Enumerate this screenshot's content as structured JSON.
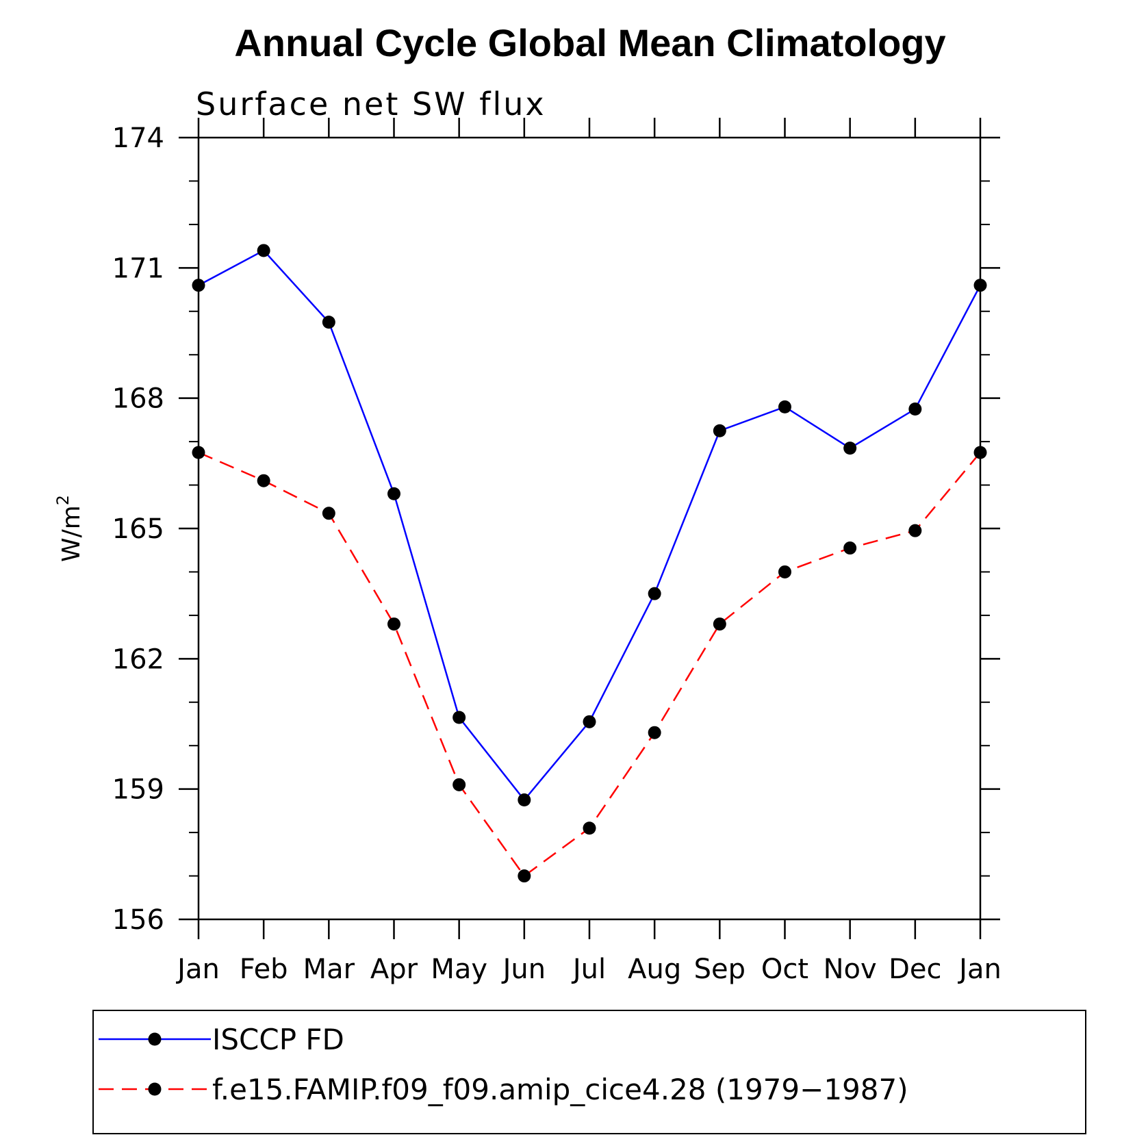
{
  "chart_data": {
    "type": "line",
    "title": "Annual Cycle Global Mean Climatology",
    "subtitle": "Surface net SW flux",
    "ylabel": "W/m",
    "ylabel_sup": "2",
    "categories": [
      "Jan",
      "Feb",
      "Mar",
      "Apr",
      "May",
      "Jun",
      "Jul",
      "Aug",
      "Sep",
      "Oct",
      "Nov",
      "Dec",
      "Jan"
    ],
    "ylim": [
      156,
      174
    ],
    "yticks": [
      156,
      159,
      162,
      165,
      168,
      171,
      174
    ],
    "grid": false,
    "legend_position": "bottom",
    "series": [
      {
        "name": "ISCCP FD",
        "color": "#0000ff",
        "style": "solid",
        "values": [
          170.6,
          171.4,
          169.75,
          165.8,
          160.65,
          158.75,
          160.55,
          163.5,
          167.25,
          167.8,
          166.85,
          167.75,
          170.6
        ]
      },
      {
        "name": "f.e15.FAMIP.f09_f09.amip_cice4.28 (1979−1987)",
        "color": "#ff0000",
        "style": "dashed",
        "values": [
          166.75,
          166.1,
          165.35,
          162.8,
          159.1,
          157.0,
          158.1,
          160.3,
          162.8,
          164.0,
          164.55,
          164.95,
          166.75
        ]
      }
    ]
  }
}
